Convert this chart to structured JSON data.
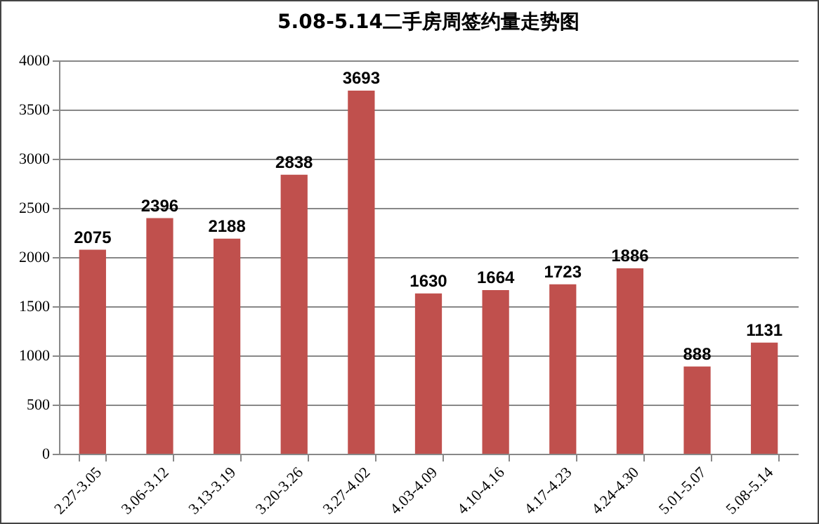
{
  "chart_data": {
    "type": "bar",
    "title": "5.08-5.14二手房周签约量走势图",
    "categories": [
      "2.27-3.05",
      "3.06-3.12",
      "3.13-3.19",
      "3.20-3.26",
      "3.27-4.02",
      "4.03-4.09",
      "4.10-4.16",
      "4.17-4.23",
      "4.24-4.30",
      "5.01-5.07",
      "5.08-5.14"
    ],
    "values": [
      2075,
      2396,
      2188,
      2838,
      3693,
      1630,
      1664,
      1723,
      1886,
      888,
      1131
    ],
    "color": "#c0504d",
    "ylim": [
      0,
      4000
    ],
    "yticks": [
      0,
      500,
      1000,
      1500,
      2000,
      2500,
      3000,
      3500,
      4000
    ],
    "grid": "y",
    "data_labels": true
  }
}
